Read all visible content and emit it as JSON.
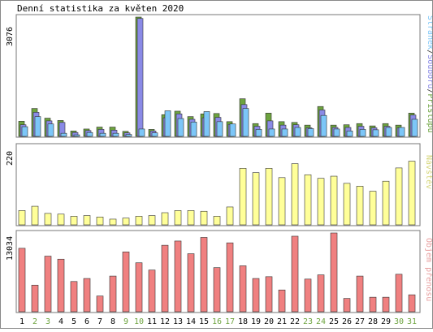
{
  "title": "Denní statistika za květen 2020",
  "colors": {
    "hits": "#6da33e",
    "files": "#8a8ae6",
    "pages": "#7cc6f8",
    "visits": "#ffff99",
    "volume": "#f08080",
    "weekend_day": "#6da33e",
    "weekday_day": "#000000",
    "visits_label": "#d6d67a",
    "volume_label": "#e8a0a0"
  },
  "chart_data": [
    {
      "type": "bar",
      "panel": "top",
      "ylim": [
        0,
        3076
      ],
      "ymax_label": "3076",
      "legend_position": "right-vertical",
      "legend": [
        "Stránek",
        "Souborů",
        "Přístupů"
      ],
      "categories": [
        "1",
        "2",
        "3",
        "4",
        "5",
        "6",
        "7",
        "8",
        "9",
        "10",
        "11",
        "12",
        "13",
        "14",
        "15",
        "16",
        "17",
        "18",
        "19",
        "20",
        "21",
        "22",
        "23",
        "24",
        "25",
        "26",
        "27",
        "28",
        "29",
        "30",
        "31"
      ],
      "series": [
        {
          "name": "Přístupů",
          "color_key": "hits",
          "values": [
            390,
            720,
            470,
            410,
            140,
            190,
            240,
            240,
            130,
            3076,
            180,
            560,
            650,
            510,
            580,
            590,
            380,
            970,
            330,
            600,
            380,
            360,
            290,
            770,
            290,
            300,
            330,
            270,
            330,
            290,
            600
          ]
        },
        {
          "name": "Souborů",
          "color_key": "files",
          "values": [
            300,
            620,
            400,
            360,
            100,
            150,
            180,
            160,
            90,
            3040,
            140,
            480,
            580,
            440,
            480,
            490,
            310,
            820,
            260,
            400,
            290,
            300,
            220,
            680,
            230,
            230,
            260,
            220,
            260,
            220,
            550
          ]
        },
        {
          "name": "Stránek",
          "color_key": "pages",
          "values": [
            250,
            510,
            320,
            80,
            40,
            100,
            80,
            80,
            50,
            190,
            90,
            660,
            460,
            370,
            640,
            380,
            320,
            720,
            180,
            190,
            190,
            230,
            200,
            540,
            190,
            140,
            180,
            170,
            230,
            230,
            440
          ]
        }
      ]
    },
    {
      "type": "bar",
      "panel": "middle",
      "ylim": [
        0,
        220
      ],
      "ymax_label": "220",
      "legend": [
        "Návštěv"
      ],
      "categories": [
        "1",
        "2",
        "3",
        "4",
        "5",
        "6",
        "7",
        "8",
        "9",
        "10",
        "11",
        "12",
        "13",
        "14",
        "15",
        "16",
        "17",
        "18",
        "19",
        "20",
        "21",
        "22",
        "23",
        "24",
        "25",
        "26",
        "27",
        "28",
        "29",
        "30",
        "31"
      ],
      "series": [
        {
          "name": "Návštěv",
          "color_key": "visits",
          "values": [
            40,
            52,
            32,
            30,
            24,
            26,
            22,
            16,
            19,
            24,
            26,
            34,
            40,
            40,
            38,
            24,
            50,
            158,
            146,
            158,
            132,
            171,
            140,
            130,
            136,
            116,
            108,
            94,
            122,
            159,
            178
          ]
        }
      ]
    },
    {
      "type": "bar",
      "panel": "bottom",
      "ylim": [
        0,
        13034
      ],
      "ymax_label": "13034",
      "legend": [
        "Objem přenosu"
      ],
      "categories": [
        "1",
        "2",
        "3",
        "4",
        "5",
        "6",
        "7",
        "8",
        "9",
        "10",
        "11",
        "12",
        "13",
        "14",
        "15",
        "16",
        "17",
        "18",
        "19",
        "20",
        "21",
        "22",
        "23",
        "24",
        "25",
        "26",
        "27",
        "28",
        "29",
        "30",
        "31"
      ],
      "series": [
        {
          "name": "Objem přenosu",
          "color_key": "volume",
          "values": [
            10500,
            4400,
            9200,
            8700,
            5000,
            5500,
            2600,
            5900,
            9900,
            8100,
            6900,
            11000,
            11700,
            9600,
            12300,
            7300,
            11400,
            7600,
            5500,
            5800,
            3600,
            12500,
            5400,
            6100,
            13034,
            2200,
            5900,
            2400,
            2400,
            6200,
            2800
          ]
        }
      ]
    }
  ],
  "x_axis": {
    "days": [
      "1",
      "2",
      "3",
      "4",
      "5",
      "6",
      "7",
      "8",
      "9",
      "10",
      "11",
      "12",
      "13",
      "14",
      "15",
      "16",
      "17",
      "18",
      "19",
      "20",
      "21",
      "22",
      "23",
      "24",
      "25",
      "26",
      "27",
      "28",
      "29",
      "30",
      "31"
    ],
    "weekend": [
      2,
      3,
      9,
      10,
      16,
      17,
      23,
      24,
      30,
      31
    ]
  }
}
